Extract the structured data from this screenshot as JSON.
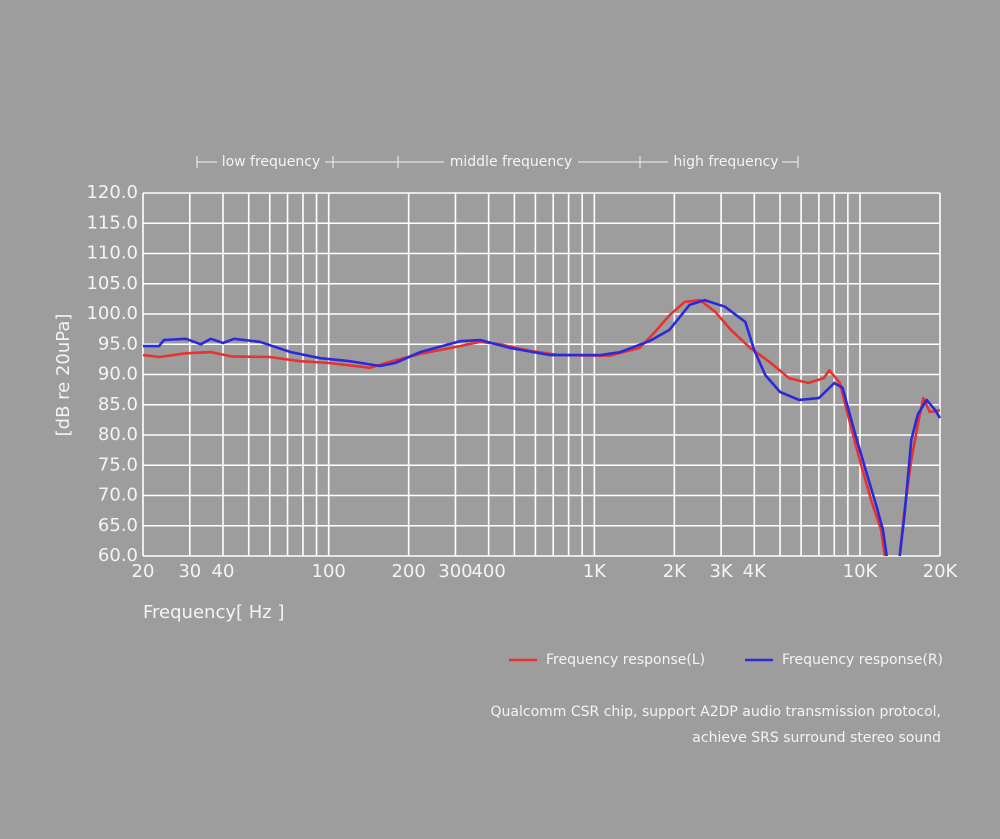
{
  "chart_data": {
    "type": "line",
    "annotations": [
      "low frequency",
      "middle frequency",
      "high frequency"
    ],
    "ylabel": "[dB re 20uPa]",
    "xlabel": "Frequency[ Hz ]",
    "log_x": true,
    "grid": true,
    "xlim": [
      20,
      20000
    ],
    "ylim": [
      60,
      120
    ],
    "xticks": [
      20,
      30,
      40,
      100,
      200,
      300,
      400,
      {
        "value": 1000,
        "label": "1K"
      },
      {
        "value": 2000,
        "label": "2K"
      },
      {
        "value": 3000,
        "label": "3K"
      },
      {
        "value": 4000,
        "label": "4K"
      },
      {
        "value": 10000,
        "label": "10K"
      },
      {
        "value": 20000,
        "label": "20K"
      }
    ],
    "x_minor_ticks": [
      50,
      60,
      70,
      80,
      90,
      500,
      600,
      700,
      800,
      900,
      5000,
      6000,
      7000,
      8000,
      9000
    ],
    "yticks": [
      {
        "value": 60,
        "label": "60.0"
      },
      {
        "value": 65,
        "label": "65.0"
      },
      {
        "value": 70,
        "label": "70.0"
      },
      {
        "value": 75,
        "label": "75.0"
      },
      {
        "value": 80,
        "label": "80.0"
      },
      {
        "value": 85,
        "label": "85.0"
      },
      {
        "value": 90,
        "label": "90.0"
      },
      {
        "value": 95,
        "label": "95.0"
      },
      {
        "value": 100,
        "label": "100.0"
      },
      {
        "value": 105,
        "label": "105.0"
      },
      {
        "value": 110,
        "label": "110.0"
      },
      {
        "value": 115,
        "label": "115.0"
      },
      {
        "value": 120,
        "label": "120.0"
      }
    ],
    "series": [
      {
        "name": "Frequency response(L)",
        "color": "#e8322f",
        "x": [
          20,
          23,
          29,
          36,
          43,
          60,
          78,
          101,
          143,
          170,
          221,
          312,
          372,
          441,
          573,
          741,
          1140,
          1480,
          1680,
          1920,
          2190,
          2500,
          2860,
          3260,
          3860,
          4560,
          5400,
          6400,
          7300,
          7660,
          8400,
          9200,
          10100,
          11000,
          12000,
          12400,
          13000,
          14100,
          14700,
          15600,
          16500,
          17300,
          18300,
          20000
        ],
        "values": [
          93.2,
          92.9,
          93.5,
          93.7,
          93,
          92.9,
          92.2,
          91.9,
          91.1,
          92.1,
          93.4,
          94.7,
          95.4,
          95,
          93.9,
          93.2,
          93.1,
          94.4,
          96.9,
          99.8,
          102,
          102.3,
          100.3,
          97.4,
          94.4,
          92.1,
          89.4,
          88.6,
          89.4,
          90.7,
          88.6,
          81.7,
          75,
          69.3,
          64.3,
          60,
          null,
          60,
          67.6,
          75.9,
          81.7,
          86.1,
          83.8,
          84.1
        ]
      },
      {
        "name": "Frequency response(R)",
        "color": "#2a2adc",
        "x": [
          20,
          23,
          24,
          29,
          33,
          36,
          40,
          44,
          55,
          72,
          93,
          120,
          156,
          178,
          221,
          312,
          372,
          480,
          682,
          1050,
          1250,
          1610,
          1920,
          2280,
          2600,
          3100,
          3700,
          4000,
          4400,
          5000,
          5900,
          7000,
          8000,
          8600,
          9500,
          10500,
          11500,
          12200,
          12600,
          13200,
          14100,
          14700,
          15600,
          16500,
          17800,
          19200,
          20000
        ],
        "values": [
          94.7,
          94.7,
          95.7,
          95.9,
          95,
          95.9,
          95.2,
          95.9,
          95.4,
          93.7,
          92.7,
          92.2,
          91.4,
          91.9,
          93.7,
          95.5,
          95.7,
          94.4,
          93.2,
          93.2,
          93.7,
          95.5,
          97.4,
          101.5,
          102.3,
          101.2,
          98.7,
          94,
          89.9,
          87.1,
          85.8,
          86.1,
          88.6,
          87.8,
          80.8,
          74.2,
          68.4,
          64.3,
          60,
          null,
          60,
          66.8,
          79.2,
          83.4,
          85.8,
          84.1,
          82.8
        ]
      }
    ],
    "notes": [
      "Qualcomm CSR chip, support A2DP audio transmission protocol,",
      "achieve SRS surround stereo sound"
    ]
  }
}
